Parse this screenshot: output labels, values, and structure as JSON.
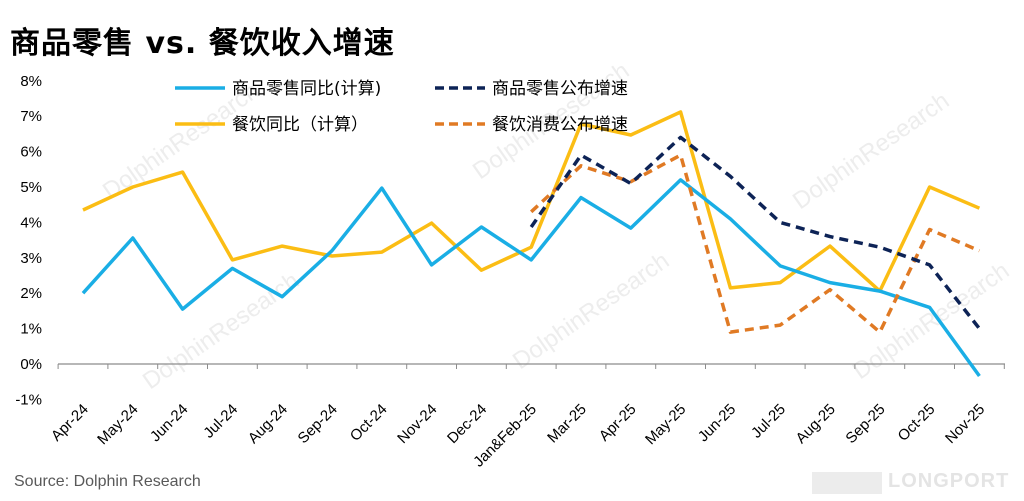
{
  "title": "商品零售 vs. 餐饮收入增速",
  "source": "Source: Dolphin Research",
  "logo_text": "LONGPORT",
  "watermark": "DolphinResearch",
  "chart_data": {
    "type": "line",
    "title": "商品零售 vs. 餐饮收入增速",
    "xlabel": "",
    "ylabel": "",
    "ylim": [
      -1,
      8
    ],
    "yticks": [
      "-1%",
      "0%",
      "1%",
      "2%",
      "3%",
      "4%",
      "5%",
      "6%",
      "7%",
      "8%"
    ],
    "grid": false,
    "legend_position": "top",
    "categories": [
      "Apr-24",
      "May-24",
      "Jun-24",
      "Jul-24",
      "Aug-24",
      "Sep-24",
      "Oct-24",
      "Nov-24",
      "Dec-24",
      "Jan&Feb-25",
      "Mar-25",
      "Apr-25",
      "May-25",
      "Jun-25",
      "Jul-25",
      "Aug-25",
      "Sep-25",
      "Oct-25",
      "Nov-25"
    ],
    "series": [
      {
        "name": "商品零售同比(计算)",
        "color": "#1aaee5",
        "dash": false,
        "values": [
          2.0,
          3.56,
          1.55,
          2.7,
          1.9,
          3.2,
          4.97,
          2.8,
          3.87,
          2.94,
          4.7,
          3.84,
          5.2,
          4.1,
          2.77,
          2.3,
          2.06,
          1.6,
          -0.34
        ]
      },
      {
        "name": "商品零售公布增速",
        "color": "#0d2356",
        "dash": true,
        "values": [
          null,
          null,
          null,
          null,
          null,
          null,
          null,
          null,
          null,
          3.87,
          5.9,
          5.1,
          6.4,
          5.3,
          4.0,
          3.6,
          3.3,
          2.8,
          1.0
        ]
      },
      {
        "name": "餐饮同比（计算）",
        "color": "#fbbd14",
        "dash": false,
        "values": [
          4.35,
          5.0,
          5.42,
          2.94,
          3.33,
          3.05,
          3.16,
          3.98,
          2.65,
          3.3,
          6.78,
          6.47,
          7.12,
          2.15,
          2.3,
          3.33,
          2.06,
          5.0,
          4.4
        ]
      },
      {
        "name": "餐饮消费公布增速",
        "color": "#e07a24",
        "dash": true,
        "values": [
          null,
          null,
          null,
          null,
          null,
          null,
          null,
          null,
          null,
          4.3,
          5.6,
          5.15,
          5.9,
          0.9,
          1.1,
          2.1,
          0.9,
          3.8,
          3.2
        ]
      }
    ]
  }
}
